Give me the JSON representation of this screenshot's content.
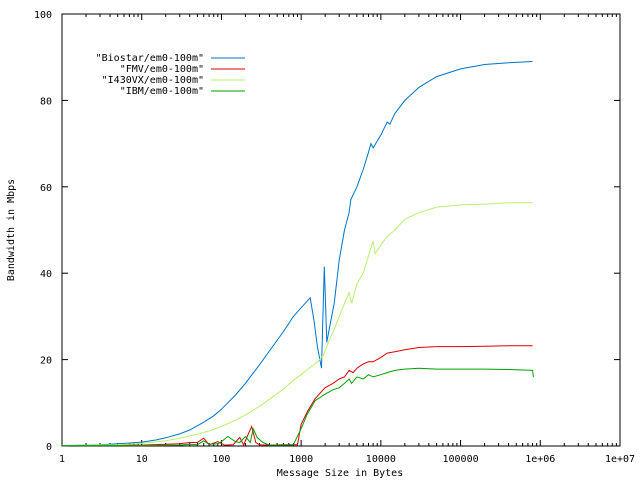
{
  "chart_data": {
    "type": "line",
    "title": "",
    "xlabel": "Message Size in Bytes",
    "ylabel": "Bandwidth in Mbps",
    "x_scale": "log",
    "xlim": [
      1,
      10000000
    ],
    "ylim": [
      0,
      100
    ],
    "x_ticks": [
      1,
      10,
      100,
      1000,
      10000,
      100000,
      1000000,
      10000000
    ],
    "x_tick_labels": [
      "1",
      "10",
      "100",
      "1000",
      "10000",
      "100000",
      "1e+06",
      "1e+07"
    ],
    "y_ticks": [
      0,
      20,
      40,
      60,
      80,
      100
    ],
    "y_tick_labels": [
      "0",
      "20",
      "40",
      "60",
      "80",
      "100"
    ],
    "grid": false,
    "legend_position": "top-left",
    "series": [
      {
        "name": "\"Biostar/em0-100m\"",
        "color": "#0074c8",
        "points": [
          [
            1,
            0.1
          ],
          [
            2,
            0.2
          ],
          [
            3,
            0.3
          ],
          [
            5,
            0.5
          ],
          [
            7,
            0.7
          ],
          [
            10,
            0.9
          ],
          [
            15,
            1.4
          ],
          [
            20,
            1.9
          ],
          [
            30,
            2.8
          ],
          [
            40,
            3.7
          ],
          [
            60,
            5.5
          ],
          [
            80,
            7.0
          ],
          [
            100,
            8.5
          ],
          [
            150,
            11.8
          ],
          [
            200,
            14.5
          ],
          [
            300,
            18.8
          ],
          [
            400,
            22.0
          ],
          [
            600,
            26.5
          ],
          [
            800,
            30.0
          ],
          [
            1000,
            32.0
          ],
          [
            1300,
            34.3
          ],
          [
            1450,
            29.0
          ],
          [
            1600,
            23.0
          ],
          [
            1800,
            18.0
          ],
          [
            1950,
            41.5
          ],
          [
            2100,
            24.0
          ],
          [
            2300,
            28.0
          ],
          [
            2600,
            33.0
          ],
          [
            3000,
            43.0
          ],
          [
            3500,
            50.0
          ],
          [
            4000,
            54.0
          ],
          [
            4200,
            57.0
          ],
          [
            5000,
            60.0
          ],
          [
            6000,
            64.0
          ],
          [
            7000,
            68.0
          ],
          [
            7500,
            70.0
          ],
          [
            8000,
            69.0
          ],
          [
            10000,
            72.0
          ],
          [
            12000,
            75.0
          ],
          [
            13000,
            74.5
          ],
          [
            15000,
            77.0
          ],
          [
            20000,
            80.0
          ],
          [
            30000,
            83.0
          ],
          [
            50000,
            85.5
          ],
          [
            100000,
            87.3
          ],
          [
            200000,
            88.3
          ],
          [
            400000,
            88.7
          ],
          [
            800000,
            89.0
          ]
        ]
      },
      {
        "name": "\"FMV/em0-100m\"",
        "color": "#e00000",
        "points": [
          [
            1,
            0.1
          ],
          [
            5,
            0.2
          ],
          [
            10,
            0.2
          ],
          [
            20,
            0.4
          ],
          [
            30,
            0.5
          ],
          [
            40,
            0.8
          ],
          [
            50,
            0.8
          ],
          [
            60,
            1.8
          ],
          [
            70,
            0.3
          ],
          [
            90,
            1.0
          ],
          [
            110,
            0.2
          ],
          [
            140,
            0.3
          ],
          [
            170,
            2.0
          ],
          [
            190,
            0.2
          ],
          [
            220,
            3.0
          ],
          [
            240,
            4.5
          ],
          [
            270,
            0.8
          ],
          [
            300,
            0.3
          ],
          [
            400,
            0.2
          ],
          [
            600,
            0.3
          ],
          [
            800,
            0.3
          ],
          [
            900,
            0.3
          ],
          [
            1000,
            5.0
          ],
          [
            1200,
            8.0
          ],
          [
            1500,
            11.0
          ],
          [
            2000,
            13.5
          ],
          [
            2500,
            14.5
          ],
          [
            3000,
            15.5
          ],
          [
            3500,
            16.0
          ],
          [
            4000,
            17.5
          ],
          [
            4500,
            17.0
          ],
          [
            5000,
            18.0
          ],
          [
            6000,
            19.0
          ],
          [
            7000,
            19.5
          ],
          [
            8000,
            19.5
          ],
          [
            10000,
            20.5
          ],
          [
            12000,
            21.5
          ],
          [
            15000,
            21.8
          ],
          [
            20000,
            22.3
          ],
          [
            30000,
            22.8
          ],
          [
            50000,
            23.0
          ],
          [
            100000,
            23.0
          ],
          [
            200000,
            23.1
          ],
          [
            400000,
            23.2
          ],
          [
            800000,
            23.2
          ]
        ]
      },
      {
        "name": "\"I430VX/em0-100m\"",
        "color": "#b8f070",
        "points": [
          [
            1,
            0.1
          ],
          [
            5,
            0.3
          ],
          [
            10,
            0.6
          ],
          [
            20,
            1.2
          ],
          [
            30,
            1.8
          ],
          [
            50,
            2.7
          ],
          [
            70,
            3.5
          ],
          [
            100,
            4.5
          ],
          [
            150,
            6.0
          ],
          [
            200,
            7.2
          ],
          [
            300,
            9.2
          ],
          [
            400,
            10.8
          ],
          [
            600,
            13.2
          ],
          [
            800,
            15.2
          ],
          [
            1000,
            16.5
          ],
          [
            1300,
            18.2
          ],
          [
            1600,
            19.5
          ],
          [
            1900,
            21.0
          ],
          [
            2200,
            24.0
          ],
          [
            2600,
            27.0
          ],
          [
            3000,
            30.0
          ],
          [
            3500,
            33.0
          ],
          [
            4000,
            35.5
          ],
          [
            4300,
            33.0
          ],
          [
            5000,
            37.5
          ],
          [
            6000,
            40.0
          ],
          [
            7000,
            44.0
          ],
          [
            8000,
            47.5
          ],
          [
            8500,
            44.5
          ],
          [
            10000,
            46.5
          ],
          [
            12000,
            48.5
          ],
          [
            15000,
            50.0
          ],
          [
            20000,
            52.5
          ],
          [
            30000,
            54.0
          ],
          [
            50000,
            55.3
          ],
          [
            100000,
            55.8
          ],
          [
            200000,
            56.0
          ],
          [
            400000,
            56.3
          ],
          [
            800000,
            56.3
          ]
        ]
      },
      {
        "name": "\"IBM/em0-100m\"",
        "color": "#00a000",
        "points": [
          [
            1,
            0.1
          ],
          [
            10,
            0.1
          ],
          [
            30,
            0.2
          ],
          [
            40,
            0.4
          ],
          [
            50,
            0.3
          ],
          [
            60,
            1.2
          ],
          [
            70,
            0.4
          ],
          [
            90,
            0.5
          ],
          [
            100,
            1.0
          ],
          [
            120,
            2.2
          ],
          [
            150,
            1.0
          ],
          [
            170,
            0.8
          ],
          [
            200,
            2.2
          ],
          [
            230,
            0.8
          ],
          [
            250,
            4.0
          ],
          [
            280,
            2.0
          ],
          [
            330,
            0.8
          ],
          [
            400,
            0.2
          ],
          [
            600,
            0.2
          ],
          [
            800,
            0.3
          ],
          [
            1000,
            4.0
          ],
          [
            1200,
            7.5
          ],
          [
            1500,
            10.5
          ],
          [
            2000,
            12.0
          ],
          [
            2500,
            13.0
          ],
          [
            3000,
            13.5
          ],
          [
            3500,
            14.5
          ],
          [
            4000,
            15.5
          ],
          [
            4300,
            14.5
          ],
          [
            5000,
            16.0
          ],
          [
            6000,
            15.5
          ],
          [
            7000,
            16.5
          ],
          [
            8000,
            16.0
          ],
          [
            10000,
            16.5
          ],
          [
            12000,
            17.0
          ],
          [
            15000,
            17.5
          ],
          [
            20000,
            17.8
          ],
          [
            30000,
            18.0
          ],
          [
            50000,
            17.8
          ],
          [
            100000,
            17.8
          ],
          [
            200000,
            17.8
          ],
          [
            400000,
            17.7
          ],
          [
            800000,
            17.5
          ],
          [
            820000,
            16.0
          ]
        ]
      }
    ]
  }
}
